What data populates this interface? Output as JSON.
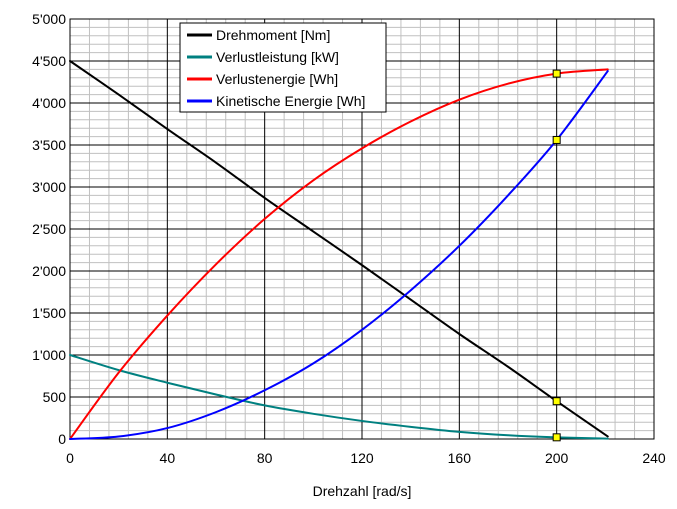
{
  "chart_data": {
    "type": "line",
    "title": "",
    "xlabel": "Drehzahl [rad/s]",
    "ylabel": "",
    "xlim": [
      0,
      240
    ],
    "ylim": [
      0,
      5000
    ],
    "grid": true,
    "legend_position": "top-center",
    "x_ticks": [
      0,
      40,
      80,
      120,
      160,
      200,
      240
    ],
    "x_tick_labels": [
      "0",
      "40",
      "80",
      "120",
      "160",
      "200",
      "240"
    ],
    "y_ticks": [
      0,
      500,
      1000,
      1500,
      2000,
      2500,
      3000,
      3500,
      4000,
      4500,
      5000
    ],
    "y_tick_labels": [
      "0",
      "500",
      "1'000",
      "1'500",
      "2'000",
      "2'500",
      "3'000",
      "3'500",
      "4'000",
      "4'500",
      "5'000"
    ],
    "series": [
      {
        "name": "Drehmoment [Nm]",
        "color": "#000000",
        "x": [
          0,
          20,
          40,
          60,
          80,
          100,
          120,
          140,
          160,
          180,
          200,
          221
        ],
        "y": [
          4500,
          4100,
          3690,
          3290,
          2870,
          2470,
          2070,
          1660,
          1250,
          860,
          450,
          30
        ]
      },
      {
        "name": "Verlustleistung [kW]",
        "color": "#008080",
        "x": [
          0,
          20,
          40,
          60,
          80,
          100,
          120,
          140,
          160,
          180,
          200,
          221
        ],
        "y": [
          1000,
          820,
          670,
          530,
          400,
          300,
          215,
          145,
          85,
          45,
          20,
          5
        ]
      },
      {
        "name": "Verlustenergie [Wh]",
        "color": "#ff0000",
        "x": [
          0,
          20,
          40,
          60,
          80,
          100,
          120,
          140,
          160,
          180,
          200,
          221
        ],
        "y": [
          0,
          790,
          1470,
          2080,
          2620,
          3080,
          3460,
          3780,
          4040,
          4230,
          4350,
          4400
        ]
      },
      {
        "name": "Kinetische Energie [Wh]",
        "color": "#0000ff",
        "x": [
          0,
          20,
          40,
          60,
          80,
          100,
          120,
          140,
          160,
          180,
          200,
          221
        ],
        "y": [
          0,
          30,
          130,
          320,
          580,
          900,
          1300,
          1770,
          2300,
          2900,
          3560,
          4380
        ]
      }
    ],
    "markers": {
      "x": 200,
      "y": [
        4350,
        3560,
        450,
        20
      ],
      "fill": "#ffff00"
    }
  }
}
